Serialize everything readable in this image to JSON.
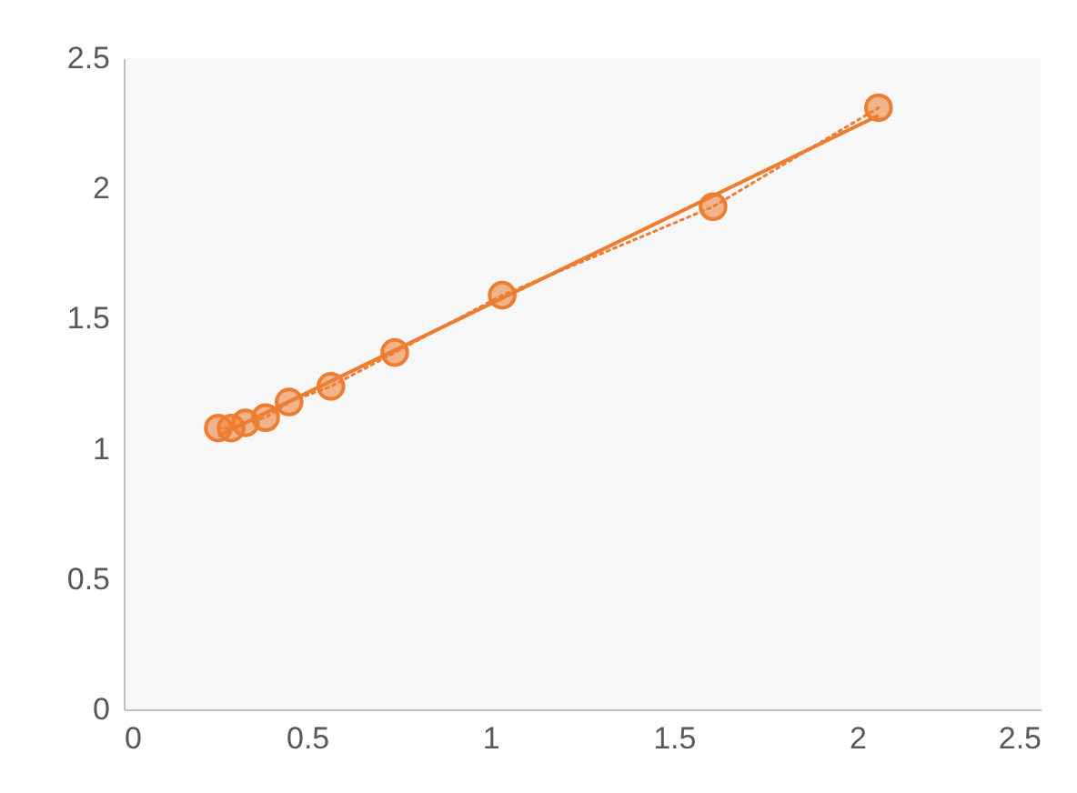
{
  "chart_data": {
    "type": "line",
    "xlim": [
      0,
      2.5
    ],
    "ylim": [
      0,
      2.5
    ],
    "xticks": [
      0,
      0.5,
      1,
      1.5,
      2,
      2.5
    ],
    "yticks": [
      0,
      0.5,
      1,
      1.5,
      2,
      2.5
    ],
    "grid": false,
    "series": [
      {
        "marker": "circle",
        "line_style": "dotted",
        "color": "#ed7d31",
        "x": [
          0.258,
          0.293,
          0.332,
          0.387,
          0.451,
          0.565,
          0.739,
          1.032,
          1.607,
          2.058
        ],
        "values": [
          1.08,
          1.08,
          1.1,
          1.12,
          1.18,
          1.24,
          1.37,
          1.59,
          1.93,
          2.31
        ]
      },
      {
        "marker": "none",
        "line_style": "solid",
        "color": "#ed7d31",
        "x": [
          0.258,
          2.058
        ],
        "values": [
          1.05,
          2.28
        ]
      }
    ]
  }
}
